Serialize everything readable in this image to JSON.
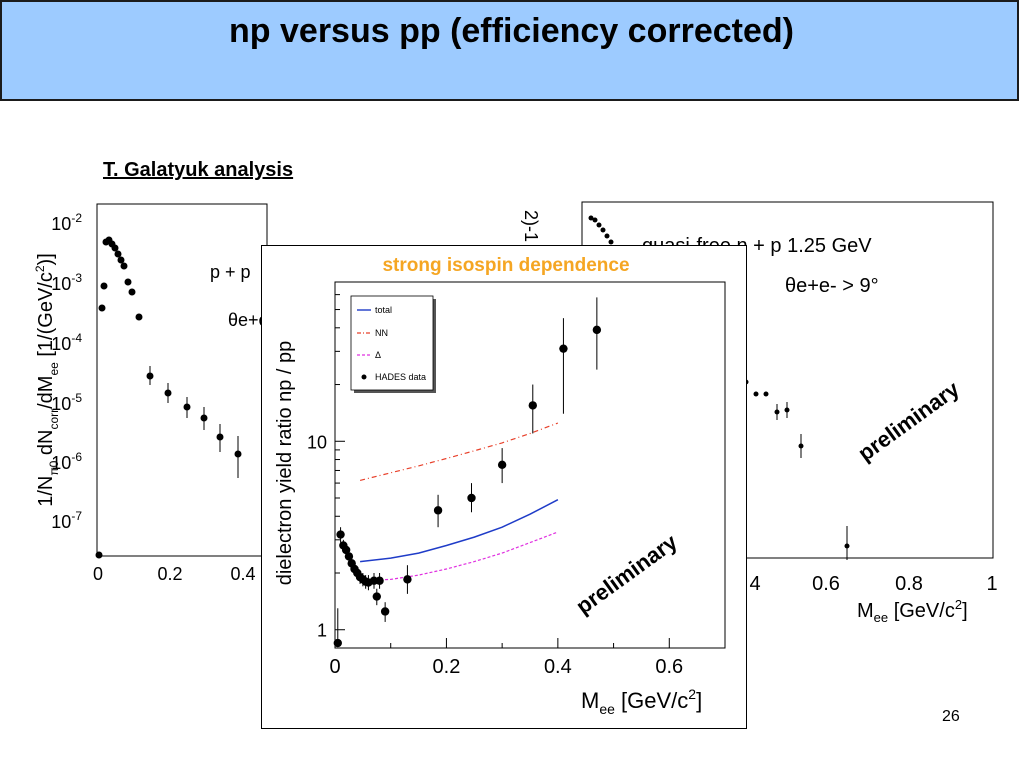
{
  "slide": {
    "title": "np versus pp (efficiency corrected)",
    "author": "T. Galatyuk analysis",
    "page_number": "26",
    "colors": {
      "title_background": "#9dcbff",
      "highlight": "#f5a623",
      "total": "#1f3cc8",
      "nn": "#e8402a",
      "delta": "#e030e0"
    }
  },
  "left_panel": {
    "ylabel_parts": [
      "1/N",
      "π0",
      " dN",
      "corr",
      "/dM",
      "ee",
      " [1/(GeV/c",
      "2",
      ")]"
    ],
    "x_ticks": [
      "0",
      "0.2",
      "0.4"
    ],
    "y_ticks": [
      {
        "base": "10",
        "exp": "-2"
      },
      {
        "base": "10",
        "exp": "-3"
      },
      {
        "base": "10",
        "exp": "-4"
      },
      {
        "base": "10",
        "exp": "-5"
      },
      {
        "base": "10",
        "exp": "-6"
      },
      {
        "base": "10",
        "exp": "-7"
      }
    ],
    "legend_partial": [
      "p + p",
      "θe+e"
    ]
  },
  "right_panel": {
    "legend_reaction": "quasi-free n + p 1.25 GeV",
    "legend_cut": "θe+e- > 9°",
    "x_ticks": [
      "4",
      "0.6",
      "0.8",
      "1"
    ],
    "xlabel_parts": [
      "M",
      "ee",
      " [GeV/c",
      "2",
      "]"
    ],
    "preliminary": "preliminary",
    "ylabel_fragment": "2)-1 ]"
  },
  "chart_data": {
    "type": "scatter",
    "title": "strong isospin dependence",
    "xlabel": "Mee [GeV/c2]",
    "ylabel": "dielectron yield ratio np / pp",
    "xlim": [
      0,
      0.7
    ],
    "ylim": [
      0.8,
      70
    ],
    "y_scale": "log",
    "x_ticks": [
      "0",
      "0.2",
      "0.4",
      "0.6"
    ],
    "y_ticks": [
      "1",
      "10"
    ],
    "legend": [
      "total",
      "NN",
      "Δ",
      "HADES data"
    ],
    "annotation": "preliminary",
    "series": [
      {
        "name": "HADES data",
        "style": "points",
        "points": [
          {
            "x": 0.005,
            "y": 0.85,
            "err_hi": 1.3,
            "err_lo": 0.85
          },
          {
            "x": 0.01,
            "y": 3.2,
            "err_hi": 3.5,
            "err_lo": 2.9
          },
          {
            "x": 0.015,
            "y": 2.8,
            "err_hi": 3.0,
            "err_lo": 2.6
          },
          {
            "x": 0.02,
            "y": 2.65,
            "err_hi": 2.8,
            "err_lo": 2.5
          },
          {
            "x": 0.025,
            "y": 2.45,
            "err_hi": 2.6,
            "err_lo": 2.3
          },
          {
            "x": 0.03,
            "y": 2.25,
            "err_hi": 2.4,
            "err_lo": 2.1
          },
          {
            "x": 0.035,
            "y": 2.1,
            "err_hi": 2.25,
            "err_lo": 1.95
          },
          {
            "x": 0.04,
            "y": 2.0,
            "err_hi": 2.15,
            "err_lo": 1.85
          },
          {
            "x": 0.045,
            "y": 1.9,
            "err_hi": 2.05,
            "err_lo": 1.75
          },
          {
            "x": 0.05,
            "y": 1.85,
            "err_hi": 2.0,
            "err_lo": 1.7
          },
          {
            "x": 0.055,
            "y": 1.8,
            "err_hi": 1.95,
            "err_lo": 1.65
          },
          {
            "x": 0.06,
            "y": 1.78,
            "err_hi": 1.95,
            "err_lo": 1.62
          },
          {
            "x": 0.07,
            "y": 1.82,
            "err_hi": 2.0,
            "err_lo": 1.65
          },
          {
            "x": 0.075,
            "y": 1.5,
            "err_hi": 1.65,
            "err_lo": 1.35
          },
          {
            "x": 0.08,
            "y": 1.82,
            "err_hi": 2.0,
            "err_lo": 1.65
          },
          {
            "x": 0.09,
            "y": 1.25,
            "err_hi": 1.4,
            "err_lo": 1.1
          },
          {
            "x": 0.13,
            "y": 1.85,
            "err_hi": 2.2,
            "err_lo": 1.55
          },
          {
            "x": 0.185,
            "y": 4.3,
            "err_hi": 5.2,
            "err_lo": 3.5
          },
          {
            "x": 0.245,
            "y": 5.0,
            "err_hi": 6.0,
            "err_lo": 4.2
          },
          {
            "x": 0.3,
            "y": 7.5,
            "err_hi": 9.2,
            "err_lo": 6.0
          },
          {
            "x": 0.355,
            "y": 15.5,
            "err_hi": 20.0,
            "err_lo": 11.0
          },
          {
            "x": 0.41,
            "y": 31.0,
            "err_hi": 45.0,
            "err_lo": 14.0
          },
          {
            "x": 0.47,
            "y": 39.0,
            "err_hi": 58.0,
            "err_lo": 24.0
          }
        ]
      },
      {
        "name": "total",
        "style": "line",
        "x": [
          0.045,
          0.1,
          0.15,
          0.2,
          0.25,
          0.3,
          0.35,
          0.4
        ],
        "y": [
          2.3,
          2.4,
          2.55,
          2.8,
          3.1,
          3.5,
          4.1,
          4.9
        ]
      },
      {
        "name": "NN",
        "style": "dashdot",
        "x": [
          0.045,
          0.1,
          0.15,
          0.2,
          0.25,
          0.3,
          0.35,
          0.4
        ],
        "y": [
          6.2,
          6.8,
          7.4,
          8.1,
          8.9,
          9.8,
          11.0,
          12.5
        ]
      },
      {
        "name": "Δ",
        "style": "dashed",
        "x": [
          0.045,
          0.1,
          0.15,
          0.2,
          0.25,
          0.3,
          0.35,
          0.4
        ],
        "y": [
          1.82,
          1.85,
          1.95,
          2.1,
          2.3,
          2.55,
          2.9,
          3.3
        ]
      }
    ]
  }
}
